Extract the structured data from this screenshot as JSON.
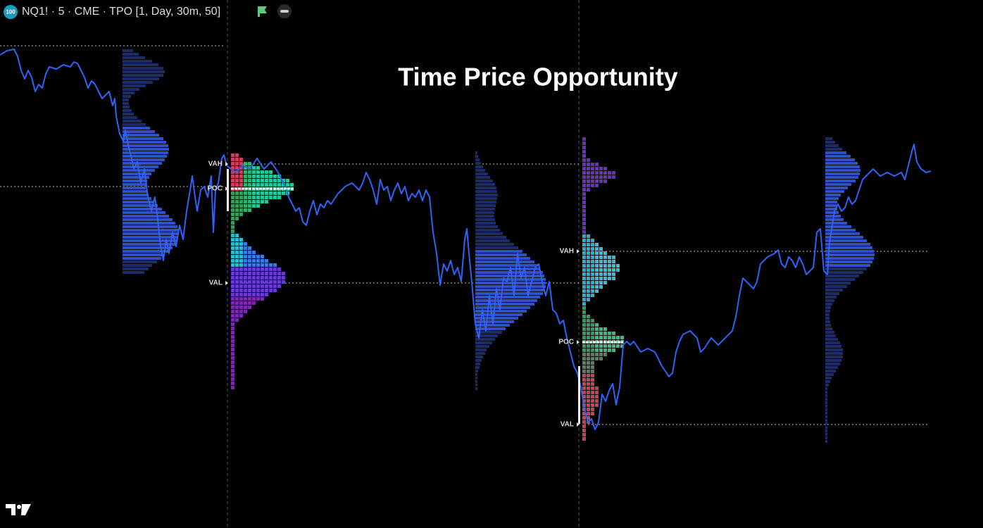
{
  "header": {
    "badge": "100",
    "symbol": "NQ1! · 5 · CME · TPO [1, Day, 30m, 50]"
  },
  "title": "Time Price Opportunity",
  "levels": [
    [
      "VAH",
      "POC",
      "VAL"
    ],
    [
      "VAH",
      "POC",
      "VAL"
    ]
  ]
}
